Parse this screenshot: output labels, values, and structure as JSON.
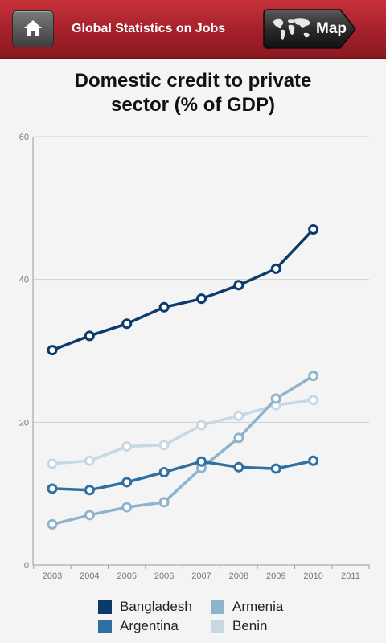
{
  "header": {
    "title": "Global Statistics on Jobs",
    "map_label": "Map",
    "home_icon": "home-icon",
    "globe_icon": "world-map-icon"
  },
  "colors": {
    "header": "#a3202a",
    "Bangladesh": "#0b3a6b",
    "Argentina": "#2f70a0",
    "Armenia": "#8db4cc",
    "Benin": "#c7d8e3"
  },
  "chart_data": {
    "type": "line",
    "title": "Domestic credit to private sector (% of GDP)",
    "title_lines": [
      "Domestic credit to private",
      "sector (% of GDP)"
    ],
    "xlabel": "",
    "ylabel": "",
    "x": [
      2003,
      2004,
      2005,
      2006,
      2007,
      2008,
      2009,
      2010
    ],
    "x_ticks": [
      "2003",
      "2004",
      "2005",
      "2006",
      "2007",
      "2008",
      "2009",
      "2010",
      "2011"
    ],
    "y_ticks": [
      "0",
      "20",
      "40",
      "60"
    ],
    "ylim": [
      0,
      60
    ],
    "xlim": [
      2003,
      2011
    ],
    "grid": true,
    "legend_position": "bottom",
    "series": [
      {
        "name": "Benin",
        "values": [
          14.2,
          14.6,
          16.6,
          16.8,
          19.6,
          20.9,
          22.4,
          23.1
        ]
      },
      {
        "name": "Armenia",
        "values": [
          5.7,
          7.0,
          8.1,
          8.8,
          13.6,
          17.8,
          23.3,
          26.5
        ]
      },
      {
        "name": "Argentina",
        "values": [
          10.7,
          10.5,
          11.6,
          13.0,
          14.5,
          13.7,
          13.5,
          14.6
        ]
      },
      {
        "name": "Bangladesh",
        "values": [
          30.1,
          32.1,
          33.8,
          36.1,
          37.3,
          39.2,
          41.5,
          47.0
        ]
      }
    ]
  },
  "legend": [
    {
      "name": "Bangladesh"
    },
    {
      "name": "Armenia"
    },
    {
      "name": "Argentina"
    },
    {
      "name": "Benin"
    }
  ]
}
